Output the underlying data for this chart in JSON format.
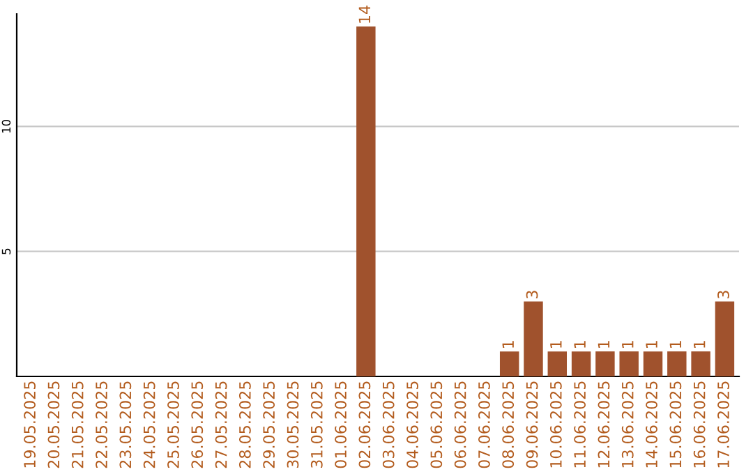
{
  "chart_data": {
    "type": "bar",
    "categories": [
      "19.05.2025",
      "20.05.2025",
      "21.05.2025",
      "22.05.2025",
      "23.05.2025",
      "24.05.2025",
      "25.05.2025",
      "26.05.2025",
      "27.05.2025",
      "28.05.2025",
      "29.05.2025",
      "30.05.2025",
      "31.05.2025",
      "01.06.2025",
      "02.06.2025",
      "03.06.2025",
      "04.06.2025",
      "05.06.2025",
      "06.06.2025",
      "07.06.2025",
      "08.06.2025",
      "09.06.2025",
      "10.06.2025",
      "11.06.2025",
      "12.06.2025",
      "13.06.2025",
      "14.06.2025",
      "15.06.2025",
      "16.06.2025",
      "17.06.2025"
    ],
    "values": [
      0,
      0,
      0,
      0,
      0,
      0,
      0,
      0,
      0,
      0,
      0,
      0,
      0,
      0,
      14,
      0,
      0,
      0,
      0,
      0,
      1,
      3,
      1,
      1,
      1,
      1,
      1,
      1,
      1,
      3
    ],
    "value_labels": [
      null,
      null,
      null,
      null,
      null,
      null,
      null,
      null,
      null,
      null,
      null,
      null,
      null,
      null,
      "14",
      null,
      null,
      null,
      null,
      null,
      "1",
      "3",
      "1",
      "1",
      "1",
      "1",
      "1",
      "1",
      "1",
      "3"
    ],
    "color": "#a0522d",
    "ylim": [
      0,
      14.5
    ],
    "yticks": [
      5,
      10
    ],
    "grid": "y"
  }
}
